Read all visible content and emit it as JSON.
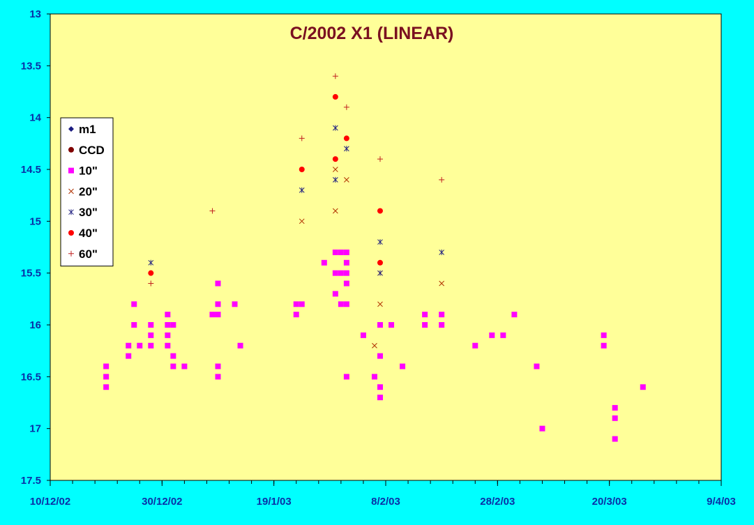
{
  "chart_data": {
    "type": "scatter",
    "title": "C/2002 X1 (LINEAR)",
    "xlabel": "",
    "ylabel": "",
    "x_unit": "date",
    "x_ticks": [
      "10/12/02",
      "30/12/02",
      "19/1/03",
      "8/2/03",
      "28/2/03",
      "20/3/03",
      "9/4/03"
    ],
    "xlim": [
      "2002-12-10",
      "2003-04-09"
    ],
    "ylim": [
      13,
      17.5
    ],
    "y_inverted": true,
    "y_ticks": [
      "13",
      "13.5",
      "14",
      "14.5",
      "15",
      "15.5",
      "16",
      "16.5",
      "17",
      "17.5"
    ],
    "grid": false,
    "legend": "left",
    "colors": {
      "background": "#00FFFF",
      "plot_area": "#FFFF99",
      "axis_text": "#0A2FA6",
      "title": "#7A1020"
    },
    "series": [
      {
        "name": "m1",
        "marker": "diamond",
        "color": "#1A1A80",
        "points": []
      },
      {
        "name": "CCD",
        "marker": "circle",
        "color": "#800000",
        "points": []
      },
      {
        "name": "10\"",
        "marker": "square",
        "color": "#FF00FF",
        "points": [
          [
            "2002-12-20",
            16.4
          ],
          [
            "2002-12-20",
            16.5
          ],
          [
            "2002-12-20",
            16.6
          ],
          [
            "2002-12-24",
            16.2
          ],
          [
            "2002-12-24",
            16.3
          ],
          [
            "2002-12-25",
            15.8
          ],
          [
            "2002-12-25",
            16.0
          ],
          [
            "2002-12-26",
            16.2
          ],
          [
            "2002-12-28",
            16.0
          ],
          [
            "2002-12-28",
            16.1
          ],
          [
            "2002-12-28",
            16.2
          ],
          [
            "2002-12-31",
            15.9
          ],
          [
            "2002-12-31",
            16.0
          ],
          [
            "2002-12-31",
            16.1
          ],
          [
            "2002-12-31",
            16.2
          ],
          [
            "2003-01-01",
            16.0
          ],
          [
            "2003-01-01",
            16.3
          ],
          [
            "2003-01-01",
            16.4
          ],
          [
            "2003-01-03",
            16.4
          ],
          [
            "2003-01-08",
            15.9
          ],
          [
            "2003-01-09",
            15.6
          ],
          [
            "2003-01-09",
            15.8
          ],
          [
            "2003-01-09",
            15.9
          ],
          [
            "2003-01-09",
            16.4
          ],
          [
            "2003-01-09",
            16.5
          ],
          [
            "2003-01-12",
            15.8
          ],
          [
            "2003-01-13",
            16.2
          ],
          [
            "2003-01-23",
            15.8
          ],
          [
            "2003-01-23",
            15.9
          ],
          [
            "2003-01-24",
            15.8
          ],
          [
            "2003-01-28",
            15.4
          ],
          [
            "2003-01-30",
            15.3
          ],
          [
            "2003-01-30",
            15.5
          ],
          [
            "2003-01-30",
            15.7
          ],
          [
            "2003-01-31",
            15.3
          ],
          [
            "2003-01-31",
            15.5
          ],
          [
            "2003-01-31",
            15.8
          ],
          [
            "2003-02-01",
            15.3
          ],
          [
            "2003-02-01",
            15.4
          ],
          [
            "2003-02-01",
            15.5
          ],
          [
            "2003-02-01",
            15.6
          ],
          [
            "2003-02-01",
            15.8
          ],
          [
            "2003-02-01",
            16.5
          ],
          [
            "2003-02-04",
            16.1
          ],
          [
            "2003-02-06",
            16.5
          ],
          [
            "2003-02-07",
            16.0
          ],
          [
            "2003-02-07",
            16.3
          ],
          [
            "2003-02-07",
            16.6
          ],
          [
            "2003-02-07",
            16.7
          ],
          [
            "2003-02-09",
            16.0
          ],
          [
            "2003-02-11",
            16.4
          ],
          [
            "2003-02-15",
            15.9
          ],
          [
            "2003-02-15",
            16.0
          ],
          [
            "2003-02-18",
            15.9
          ],
          [
            "2003-02-18",
            16.0
          ],
          [
            "2003-02-24",
            16.2
          ],
          [
            "2003-02-27",
            16.1
          ],
          [
            "2003-03-01",
            16.1
          ],
          [
            "2003-03-03",
            15.9
          ],
          [
            "2003-03-07",
            16.4
          ],
          [
            "2003-03-08",
            17.0
          ],
          [
            "2003-03-19",
            16.1
          ],
          [
            "2003-03-19",
            16.2
          ],
          [
            "2003-03-21",
            16.8
          ],
          [
            "2003-03-21",
            16.9
          ],
          [
            "2003-03-21",
            17.1
          ],
          [
            "2003-03-26",
            16.6
          ]
        ]
      },
      {
        "name": "20\"",
        "marker": "x",
        "color": "#B03000",
        "points": [
          [
            "2003-01-24",
            15.0
          ],
          [
            "2003-01-30",
            14.5
          ],
          [
            "2003-01-30",
            14.9
          ],
          [
            "2003-02-01",
            14.6
          ],
          [
            "2003-02-06",
            16.2
          ],
          [
            "2003-02-07",
            15.5
          ],
          [
            "2003-02-07",
            15.8
          ],
          [
            "2003-02-18",
            15.6
          ]
        ]
      },
      {
        "name": "30\"",
        "marker": "star",
        "color": "#202080",
        "points": [
          [
            "2002-12-28",
            15.4
          ],
          [
            "2003-01-24",
            14.7
          ],
          [
            "2003-01-30",
            14.1
          ],
          [
            "2003-01-30",
            14.6
          ],
          [
            "2003-02-01",
            14.3
          ],
          [
            "2003-02-07",
            15.2
          ],
          [
            "2003-02-07",
            15.5
          ],
          [
            "2003-02-18",
            15.3
          ]
        ]
      },
      {
        "name": "40\"",
        "marker": "circle",
        "color": "#FF0000",
        "points": [
          [
            "2002-12-28",
            15.5
          ],
          [
            "2003-01-24",
            14.5
          ],
          [
            "2003-01-30",
            13.8
          ],
          [
            "2003-01-30",
            14.4
          ],
          [
            "2003-02-01",
            14.2
          ],
          [
            "2003-02-07",
            14.9
          ],
          [
            "2003-02-07",
            15.4
          ]
        ]
      },
      {
        "name": "60\"",
        "marker": "plus",
        "color": "#C02020",
        "points": [
          [
            "2002-12-28",
            15.6
          ],
          [
            "2003-01-08",
            14.9
          ],
          [
            "2003-01-24",
            14.2
          ],
          [
            "2003-01-30",
            13.6
          ],
          [
            "2003-02-01",
            13.9
          ],
          [
            "2003-02-07",
            14.4
          ],
          [
            "2003-02-18",
            14.6
          ]
        ]
      }
    ]
  }
}
